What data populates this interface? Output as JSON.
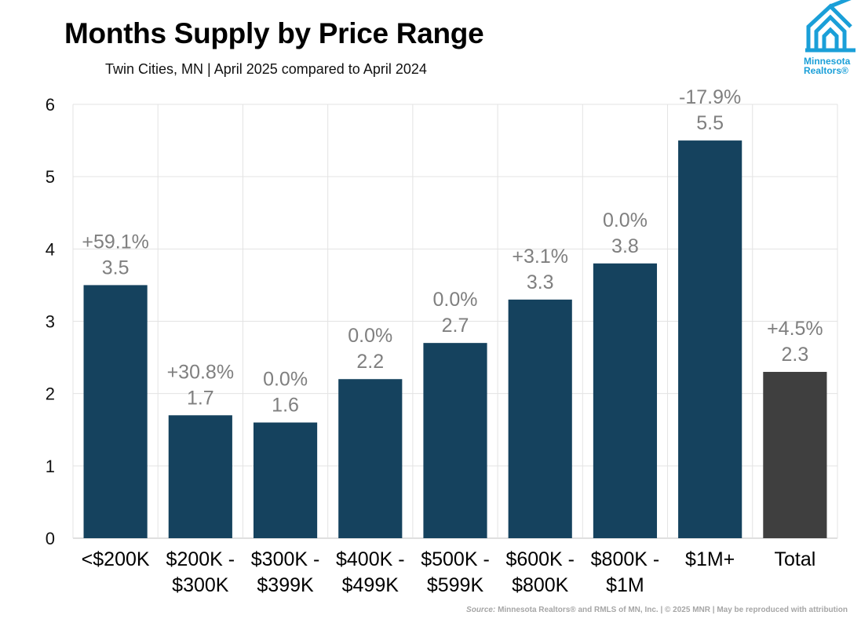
{
  "header": {
    "title": "Months Supply by Price Range",
    "subtitle": "Twin Cities, MN  |  April 2025 compared to April 2024"
  },
  "logo": {
    "line1": "Minnesota",
    "line2": "Realtors®",
    "icon": "house-logo-icon",
    "color": "#1a9fd8"
  },
  "footer": {
    "source_label": "Source:",
    "source_text": "Minnesota Realtors® and RMLS of MN, Inc.  |  © 2025 MNR  |  May be reproduced with attribution"
  },
  "chart_data": {
    "type": "bar",
    "title": "Months Supply by Price Range",
    "subtitle": "Twin Cities, MN  |  April 2025 compared to April 2024",
    "categories": [
      [
        "<$200K"
      ],
      [
        "$200K -",
        "$300K"
      ],
      [
        "$300K -",
        "$399K"
      ],
      [
        "$400K -",
        "$499K"
      ],
      [
        "$500K -",
        "$599K"
      ],
      [
        "$600K -",
        "$800K"
      ],
      [
        "$800K -",
        "$1M"
      ],
      [
        "$1M+"
      ],
      [
        "Total"
      ]
    ],
    "values": [
      3.5,
      1.7,
      1.6,
      2.2,
      2.7,
      3.3,
      3.8,
      5.5,
      2.3
    ],
    "value_labels": [
      "3.5",
      "1.7",
      "1.6",
      "2.2",
      "2.7",
      "3.3",
      "3.8",
      "5.5",
      "2.3"
    ],
    "change_labels": [
      "+59.1%",
      "+30.8%",
      "0.0%",
      "0.0%",
      "0.0%",
      "+3.1%",
      "0.0%",
      "-17.9%",
      "+4.5%"
    ],
    "colors": [
      "#15425e",
      "#15425e",
      "#15425e",
      "#15425e",
      "#15425e",
      "#15425e",
      "#15425e",
      "#15425e",
      "#3f3f3f"
    ],
    "yticks": [
      0,
      1,
      2,
      3,
      4,
      5,
      6
    ],
    "ylim": [
      0,
      6
    ],
    "grid": true,
    "legend": "none",
    "xlabel": "",
    "ylabel": ""
  }
}
